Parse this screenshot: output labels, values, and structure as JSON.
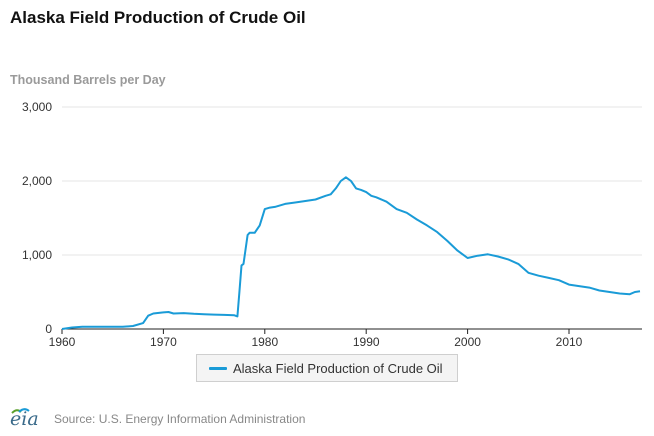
{
  "title": "Alaska Field Production of Crude Oil",
  "source": "Source: U.S. Energy Information Administration",
  "logo_text": "eia",
  "colors": {
    "series": "#1a9bd7",
    "grid": "#e6e6e6",
    "axis": "#222222"
  },
  "chart_data": {
    "type": "line",
    "title": "Alaska Field Production of Crude Oil",
    "ylabel": "Thousand Barrels per Day",
    "xlabel": "",
    "xlim": [
      1960,
      2017.2
    ],
    "ylim": [
      0,
      3000
    ],
    "x_ticks": [
      1960,
      1970,
      1980,
      1990,
      2000,
      2010
    ],
    "y_ticks": [
      0,
      1000,
      2000,
      3000
    ],
    "y_tick_labels": [
      "0",
      "1,000",
      "2,000",
      "3,000"
    ],
    "grid": true,
    "legend_position": "bottom-center",
    "series": [
      {
        "name": "Alaska Field Production of Crude Oil",
        "color": "#1a9bd7",
        "x": [
          1960.0,
          1961.0,
          1962.0,
          1964.0,
          1966.0,
          1967.0,
          1968.0,
          1968.5,
          1969.0,
          1970.0,
          1970.5,
          1971.0,
          1972.0,
          1973.0,
          1974.0,
          1975.0,
          1976.0,
          1977.0,
          1977.3,
          1977.5,
          1977.7,
          1977.9,
          1978.3,
          1978.5,
          1979.0,
          1979.5,
          1980.0,
          1980.5,
          1981.0,
          1982.0,
          1983.0,
          1984.0,
          1985.0,
          1986.0,
          1986.5,
          1987.0,
          1987.5,
          1988.0,
          1988.5,
          1989.0,
          1989.5,
          1990.0,
          1990.5,
          1991.0,
          1992.0,
          1993.0,
          1994.0,
          1995.0,
          1996.0,
          1997.0,
          1998.0,
          1999.0,
          2000.0,
          2001.0,
          2002.0,
          2003.0,
          2004.0,
          2005.0,
          2006.0,
          2007.0,
          2008.0,
          2009.0,
          2010.0,
          2011.0,
          2012.0,
          2013.0,
          2014.0,
          2015.0,
          2016.0,
          2016.5,
          2017.0
        ],
        "y": [
          0,
          20,
          30,
          30,
          30,
          40,
          80,
          180,
          210,
          225,
          230,
          210,
          215,
          205,
          200,
          195,
          190,
          185,
          170,
          500,
          860,
          880,
          1270,
          1300,
          1300,
          1400,
          1620,
          1640,
          1650,
          1690,
          1710,
          1730,
          1750,
          1800,
          1820,
          1900,
          2000,
          2050,
          2000,
          1900,
          1880,
          1850,
          1800,
          1780,
          1720,
          1620,
          1570,
          1480,
          1400,
          1310,
          1190,
          1060,
          960,
          990,
          1010,
          980,
          940,
          880,
          760,
          720,
          690,
          660,
          600,
          580,
          560,
          520,
          500,
          480,
          470,
          500,
          510
        ]
      }
    ]
  }
}
